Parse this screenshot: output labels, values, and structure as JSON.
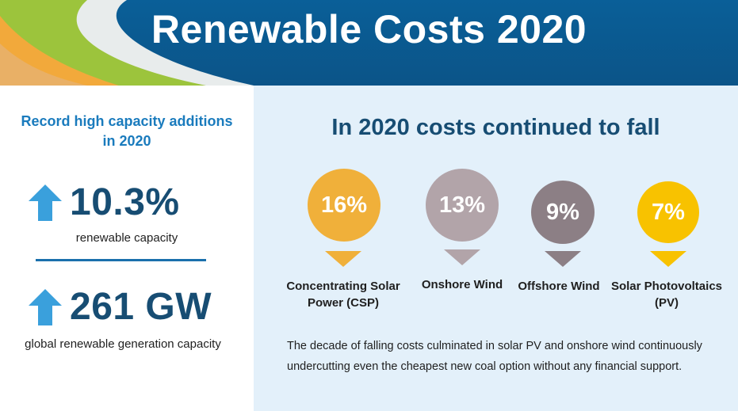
{
  "header": {
    "title": "Renewable Costs 2020"
  },
  "left": {
    "heading": "Record high capacity additions in 2020",
    "stats": [
      {
        "value": "10.3%",
        "caption": "renewable capacity"
      },
      {
        "value": "261 GW",
        "caption": "global renewable generation capacity"
      }
    ]
  },
  "right": {
    "heading": "In 2020 costs continued to fall",
    "items": [
      {
        "value": "16%",
        "label": "Concentrating Solar Power (CSP)",
        "color": "#f0b03a"
      },
      {
        "value": "13%",
        "label": "Onshore Wind",
        "color": "#b2a4a9"
      },
      {
        "value": "9%",
        "label": "Offshore Wind",
        "color": "#8c7f85"
      },
      {
        "value": "7%",
        "label": "Solar Photovoltaics (PV)",
        "color": "#f8c200"
      }
    ],
    "body": "The decade of falling costs culminated in solar PV and onshore wind continuously undercutting even the cheapest new coal option without any financial support."
  },
  "colors": {
    "banner": "#0b5a92",
    "accent_blue": "#1a7bbd",
    "dark_blue": "#174d73",
    "panel_bg": "#e3f0fa"
  },
  "icons": [
    "up-arrow-icon"
  ]
}
